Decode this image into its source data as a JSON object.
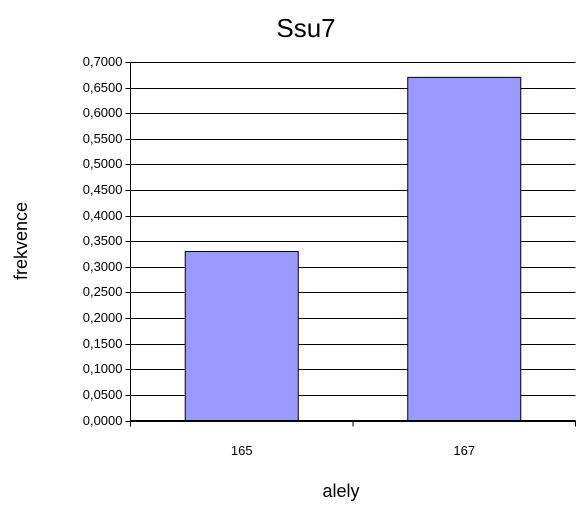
{
  "chart_data": {
    "type": "bar",
    "title": "Ssu7",
    "x_label": "alely",
    "y_label": "frekvence",
    "categories": [
      "165",
      "167"
    ],
    "values": [
      0.33,
      0.67
    ],
    "color": "#9999ff",
    "ylim": [
      0,
      0.7
    ],
    "yticks": [
      {
        "value": 0,
        "label": "0,0000"
      },
      {
        "value": 0.05,
        "label": "0,0500"
      },
      {
        "value": 0.1,
        "label": "0,1000"
      },
      {
        "value": 0.15,
        "label": "0,1500"
      },
      {
        "value": 0.2,
        "label": "0,2000"
      },
      {
        "value": 0.25,
        "label": "0,2500"
      },
      {
        "value": 0.3,
        "label": "0,3000"
      },
      {
        "value": 0.35,
        "label": "0,3500"
      },
      {
        "value": 0.4,
        "label": "0,4000"
      },
      {
        "value": 0.45,
        "label": "0,4500"
      },
      {
        "value": 0.5,
        "label": "0,5000"
      },
      {
        "value": 0.55,
        "label": "0,5500"
      },
      {
        "value": 0.6,
        "label": "0,6000"
      },
      {
        "value": 0.65,
        "label": "0,6500"
      },
      {
        "value": 0.7,
        "label": "0,7000"
      }
    ],
    "grid": true
  }
}
